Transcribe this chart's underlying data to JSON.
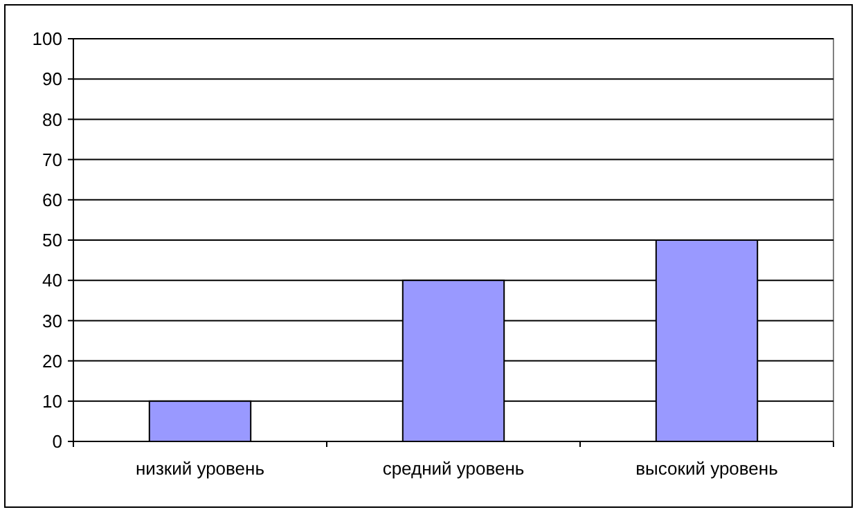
{
  "chart_data": {
    "type": "bar",
    "categories": [
      "низкий уровень",
      "средний уровень",
      "высокий уровень"
    ],
    "values": [
      10,
      40,
      50
    ],
    "color": "#9999ff",
    "ylim": [
      0,
      100
    ],
    "yticks": [
      0,
      10,
      20,
      30,
      40,
      50,
      60,
      70,
      80,
      90,
      100
    ],
    "grid": "y"
  }
}
